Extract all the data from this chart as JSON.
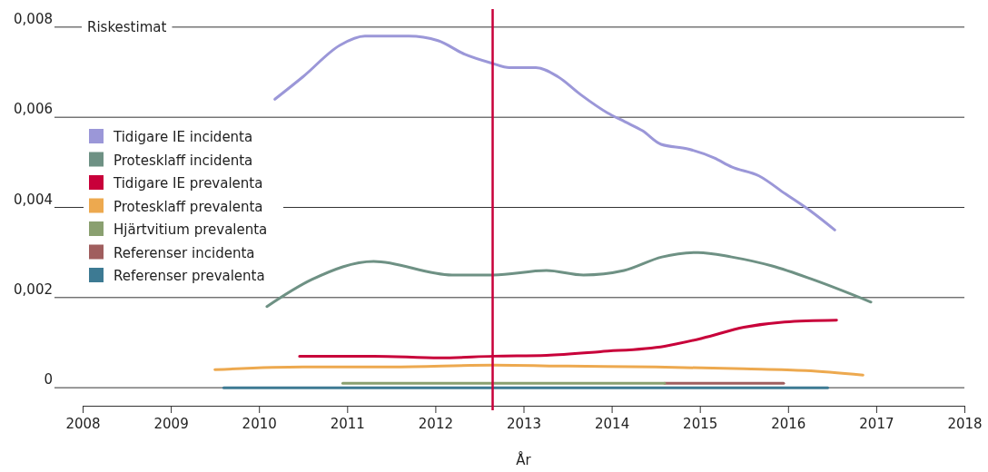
{
  "chart_data": {
    "type": "line",
    "ylabel": "Riskestimat",
    "xlabel": "År",
    "xlim": [
      2008,
      2018
    ],
    "xticks": [
      2008,
      2009,
      2010,
      2011,
      2012,
      2013,
      2014,
      2015,
      2016,
      2017,
      2018
    ],
    "ylim": [
      -0.0004,
      0.0084
    ],
    "yticks": [
      {
        "value": 0,
        "label": "0"
      },
      {
        "value": 0.002,
        "label": "0,002"
      },
      {
        "value": 0.004,
        "label": "0,004"
      },
      {
        "value": 0.006,
        "label": "0,006"
      },
      {
        "value": 0.008,
        "label": "0,008"
      }
    ],
    "grid": "y",
    "legend": "left",
    "line_style": "solid",
    "marker": "none",
    "ref_lines": [
      {
        "axis": "x",
        "value": 2012.65,
        "color": "#c8003a"
      }
    ],
    "series": [
      {
        "name": "Tidigare IE incidenta",
        "color": "#9b97d8",
        "x": [
          2010.18,
          2010.5,
          2010.92,
          2011.2,
          2011.7,
          2012.03,
          2012.33,
          2012.64,
          2012.84,
          2013.14,
          2013.39,
          2013.65,
          2013.95,
          2014.15,
          2014.35,
          2014.56,
          2014.86,
          2015.16,
          2015.36,
          2015.67,
          2015.97,
          2016.27,
          2016.53
        ],
        "values": [
          0.0064,
          0.0069,
          0.0076,
          0.0078,
          0.0078,
          0.0077,
          0.0074,
          0.0072,
          0.0071,
          0.0071,
          0.0069,
          0.0065,
          0.0061,
          0.0059,
          0.0057,
          0.0054,
          0.0053,
          0.0051,
          0.0049,
          0.0047,
          0.0043,
          0.0039,
          0.0035
        ]
      },
      {
        "name": "Protesklaff incidenta",
        "color": "#6e9184",
        "x": [
          2010.09,
          2010.6,
          2011.3,
          2012.19,
          2012.66,
          2013.26,
          2013.68,
          2014.14,
          2014.57,
          2014.98,
          2015.36,
          2015.82,
          2016.28,
          2016.94
        ],
        "values": [
          0.0018,
          0.0024,
          0.0028,
          0.0025,
          0.0025,
          0.0026,
          0.0025,
          0.0026,
          0.0029,
          0.003,
          0.0029,
          0.0027,
          0.0024,
          0.0019
        ]
      },
      {
        "name": "Tidigare IE prevalenta",
        "color": "#c8003a",
        "x": [
          2010.46,
          2011.3,
          2012.05,
          2012.66,
          2013.26,
          2013.87,
          2014.6,
          2015.03,
          2015.5,
          2015.96,
          2016.55
        ],
        "values": [
          0.0007,
          0.0007,
          0.00066,
          0.0007,
          0.00072,
          0.0008,
          0.00092,
          0.0011,
          0.00134,
          0.00146,
          0.0015
        ]
      },
      {
        "name": "Protesklaff prevalenta",
        "color": "#eda94f",
        "x": [
          2009.5,
          2010.5,
          2011.5,
          2012.66,
          2013.5,
          2014.5,
          2015.5,
          2016.2,
          2016.85
        ],
        "values": [
          0.0004,
          0.00046,
          0.00046,
          0.0005,
          0.00048,
          0.00046,
          0.00042,
          0.00038,
          0.00028
        ]
      },
      {
        "name": "Hjärtvitium prevalenta",
        "color": "#8aa070",
        "x": [
          2010.95,
          2012.5,
          2014.6
        ],
        "values": [
          0.0001,
          0.0001,
          0.0001
        ]
      },
      {
        "name": "Referenser incidenta",
        "color": "#a05e5e",
        "x": [
          2014.6,
          2015.3,
          2015.95
        ],
        "values": [
          0.0001,
          0.0001,
          0.0001
        ]
      },
      {
        "name": "Referenser prevalenta",
        "color": "#3d7a93",
        "x": [
          2009.6,
          2013,
          2016.45
        ],
        "values": [
          0,
          0,
          0
        ]
      }
    ]
  }
}
